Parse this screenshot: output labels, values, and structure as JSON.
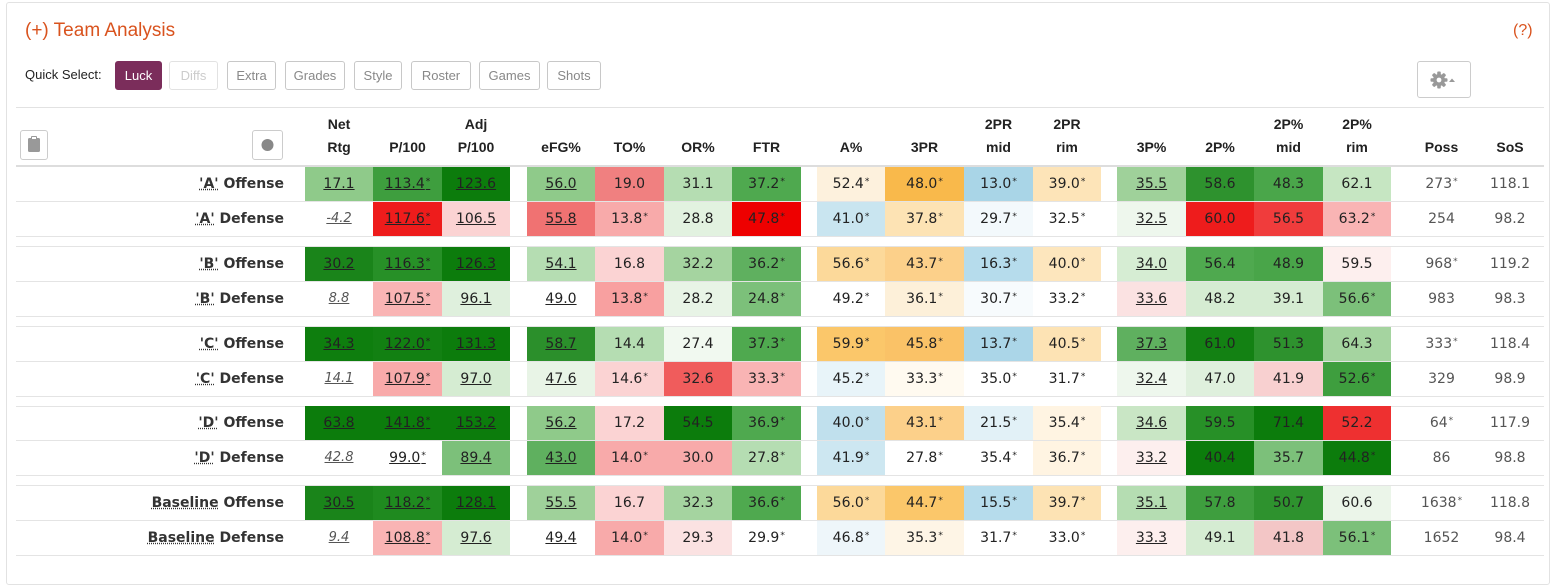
{
  "title": "(+) Team Analysis",
  "help": "(?)",
  "quick_select": {
    "label": "Quick Select:",
    "buttons": [
      {
        "label": "Luck",
        "state": "active"
      },
      {
        "label": "Diffs",
        "state": "disabled"
      },
      {
        "label": "Extra",
        "state": "normal"
      },
      {
        "label": "Grades",
        "state": "normal"
      },
      {
        "label": "Style",
        "state": "normal"
      },
      {
        "label": "Roster",
        "state": "normal"
      },
      {
        "label": "Games",
        "state": "normal"
      },
      {
        "label": "Shots",
        "state": "normal"
      }
    ]
  },
  "columns": [
    {
      "l1": "Net",
      "l2": "Rtg"
    },
    {
      "l1": "",
      "l2": "P/100"
    },
    {
      "l1": "Adj",
      "l2": "P/100"
    },
    {
      "l1": "",
      "l2": "eFG%"
    },
    {
      "l1": "",
      "l2": "TO%"
    },
    {
      "l1": "",
      "l2": "OR%"
    },
    {
      "l1": "",
      "l2": "FTR"
    },
    {
      "l1": "",
      "l2": "A%"
    },
    {
      "l1": "",
      "l2": "3PR"
    },
    {
      "l1": "2PR",
      "l2": "mid"
    },
    {
      "l1": "2PR",
      "l2": "rim"
    },
    {
      "l1": "",
      "l2": "3P%"
    },
    {
      "l1": "",
      "l2": "2P%"
    },
    {
      "l1": "2P%",
      "l2": "mid"
    },
    {
      "l1": "2P%",
      "l2": "rim"
    },
    {
      "l1": "",
      "l2": "Poss"
    },
    {
      "l1": "",
      "l2": "SoS"
    }
  ],
  "rows": [
    {
      "team": "'A'",
      "side": "Offense",
      "cells": [
        [
          "17.1",
          "",
          "#8fca8a",
          "u"
        ],
        [
          "113.4",
          "*",
          "#3e9e3e",
          "u"
        ],
        [
          "123.6",
          "",
          "#0c7c0c",
          "u"
        ],
        [
          "56.0",
          "",
          "#8fca8a",
          "u"
        ],
        [
          "19.0",
          "",
          "#f08080",
          ""
        ],
        [
          "31.1",
          "",
          "#b5ddb2",
          ""
        ],
        [
          "37.2",
          "*",
          "#4fa94f",
          ""
        ],
        [
          "52.4",
          "*",
          "#fdf1dd",
          ""
        ],
        [
          "48.0",
          "*",
          "#f9b94b",
          ""
        ],
        [
          "13.0",
          "*",
          "#a9d5e7",
          ""
        ],
        [
          "39.0",
          "*",
          "#fde4b8",
          ""
        ],
        [
          "35.5",
          "",
          "#9fd19a",
          "u"
        ],
        [
          "58.6",
          "",
          "#2e922e",
          ""
        ],
        [
          "48.3",
          "",
          "#4aa64a",
          ""
        ],
        [
          "62.1",
          "",
          "#c6e6c2",
          ""
        ],
        [
          "273",
          "*",
          "",
          "plain"
        ],
        [
          "118.1",
          "",
          "",
          "plain"
        ]
      ]
    },
    {
      "team": "'A'",
      "side": "Defense",
      "cells": [
        [
          "-4.2",
          "",
          "",
          "i"
        ],
        [
          "117.6",
          "*",
          "#ee1c1c",
          "u"
        ],
        [
          "106.5",
          "",
          "#fbd3d3",
          "u"
        ],
        [
          "55.8",
          "",
          "#f07272",
          "u"
        ],
        [
          "13.8",
          "*",
          "#f8aaaa",
          ""
        ],
        [
          "28.8",
          "",
          "#e2f2e0",
          ""
        ],
        [
          "47.8",
          "*",
          "#ee0000",
          ""
        ],
        [
          "41.0",
          "*",
          "#c9e5f0",
          ""
        ],
        [
          "37.8",
          "*",
          "#fde3b4",
          ""
        ],
        [
          "29.7",
          "*",
          "#f3f9fc",
          ""
        ],
        [
          "32.5",
          "*",
          "#ffffff",
          ""
        ],
        [
          "32.5",
          "",
          "#eef7ed",
          "u"
        ],
        [
          "60.0",
          "",
          "#ee1c1c",
          ""
        ],
        [
          "56.5",
          "",
          "#f03c3c",
          ""
        ],
        [
          "63.2",
          "*",
          "#f9b4b4",
          ""
        ],
        [
          "254",
          "",
          "",
          "plain"
        ],
        [
          "98.2",
          "",
          "",
          "plain"
        ]
      ]
    },
    {
      "team": "'B'",
      "side": "Offense",
      "cells": [
        [
          "30.2",
          "",
          "#1a841a",
          "u"
        ],
        [
          "116.3",
          "*",
          "#279027",
          "u"
        ],
        [
          "126.3",
          "",
          "#0c7c0c",
          "u"
        ],
        [
          "54.1",
          "",
          "#b5ddb2",
          "u"
        ],
        [
          "16.8",
          "",
          "#fbd3d3",
          ""
        ],
        [
          "32.2",
          "",
          "#a5d4a0",
          ""
        ],
        [
          "36.2",
          "*",
          "#5fb05f",
          ""
        ],
        [
          "56.6",
          "*",
          "#fcd99a",
          ""
        ],
        [
          "43.7",
          "*",
          "#fcd08a",
          ""
        ],
        [
          "16.3",
          "*",
          "#b6dcec",
          ""
        ],
        [
          "40.0",
          "*",
          "#fde6bd",
          ""
        ],
        [
          "34.0",
          "",
          "#d6edd3",
          "u"
        ],
        [
          "56.4",
          "",
          "#4fa94f",
          ""
        ],
        [
          "48.9",
          "",
          "#49a549",
          ""
        ],
        [
          "59.5",
          "",
          "#fdefee",
          ""
        ],
        [
          "968",
          "*",
          "",
          "plain"
        ],
        [
          "119.2",
          "",
          "",
          "plain"
        ]
      ]
    },
    {
      "team": "'B'",
      "side": "Defense",
      "cells": [
        [
          "8.8",
          "",
          "",
          "i"
        ],
        [
          "107.5",
          "*",
          "#f9b4b4",
          "u"
        ],
        [
          "96.1",
          "",
          "#dff0dd",
          "u"
        ],
        [
          "49.0",
          "",
          "",
          "u"
        ],
        [
          "13.8",
          "*",
          "#f8a0a0",
          ""
        ],
        [
          "28.2",
          "",
          "#e8f4e6",
          ""
        ],
        [
          "24.8",
          "*",
          "#7cc07a",
          ""
        ],
        [
          "49.2",
          "*",
          "#ffffff",
          ""
        ],
        [
          "36.1",
          "*",
          "#fdf0d9",
          ""
        ],
        [
          "30.7",
          "*",
          "#f7fbfd",
          ""
        ],
        [
          "33.2",
          "*",
          "#ffffff",
          ""
        ],
        [
          "33.6",
          "",
          "#fbe2e2",
          "u"
        ],
        [
          "48.2",
          "",
          "#d5ecd2",
          ""
        ],
        [
          "39.1",
          "",
          "#d5ecd2",
          ""
        ],
        [
          "56.6",
          "*",
          "#7cc07a",
          ""
        ],
        [
          "983",
          "",
          "",
          "plain"
        ],
        [
          "98.3",
          "",
          "",
          "plain"
        ]
      ]
    },
    {
      "team": "'C'",
      "side": "Offense",
      "cells": [
        [
          "34.3",
          "",
          "#0e7e0e",
          "u"
        ],
        [
          "122.0",
          "*",
          "#128012",
          "u"
        ],
        [
          "131.3",
          "",
          "#0c7c0c",
          "u"
        ],
        [
          "58.7",
          "",
          "#2b8f2b",
          "u"
        ],
        [
          "14.4",
          "",
          "#b5ddb2",
          ""
        ],
        [
          "27.4",
          "",
          "#f1f9f0",
          ""
        ],
        [
          "37.3",
          "*",
          "#4fa94f",
          ""
        ],
        [
          "59.9",
          "*",
          "#fbc76a",
          ""
        ],
        [
          "45.8",
          "*",
          "#fac267",
          ""
        ],
        [
          "13.7",
          "*",
          "#abd6e8",
          ""
        ],
        [
          "40.5",
          "*",
          "#fde3b4",
          ""
        ],
        [
          "37.3",
          "",
          "#5fb05f",
          "u"
        ],
        [
          "61.0",
          "",
          "#138113",
          ""
        ],
        [
          "51.3",
          "",
          "#2e922e",
          ""
        ],
        [
          "64.3",
          "",
          "#a5d4a0",
          ""
        ],
        [
          "333",
          "*",
          "",
          "plain"
        ],
        [
          "118.4",
          "",
          "",
          "plain"
        ]
      ]
    },
    {
      "team": "'C'",
      "side": "Defense",
      "cells": [
        [
          "14.1",
          "",
          "",
          "i"
        ],
        [
          "107.9",
          "*",
          "#f8aaaa",
          "u"
        ],
        [
          "97.0",
          "",
          "#d5ecd2",
          "u"
        ],
        [
          "47.6",
          "",
          "#e8f4e6",
          "u"
        ],
        [
          "14.6",
          "*",
          "#fbd3d3",
          ""
        ],
        [
          "32.6",
          "",
          "#f05c5c",
          ""
        ],
        [
          "33.3",
          "*",
          "#f9b4b4",
          ""
        ],
        [
          "45.2",
          "*",
          "#e8f4f9",
          ""
        ],
        [
          "33.3",
          "*",
          "#fffaf0",
          ""
        ],
        [
          "35.0",
          "*",
          "#ffffff",
          ""
        ],
        [
          "31.7",
          "*",
          "#ffffff",
          ""
        ],
        [
          "32.4",
          "",
          "#eef7ed",
          "u"
        ],
        [
          "47.0",
          "",
          "#dff0dd",
          ""
        ],
        [
          "41.9",
          "",
          "#f8d0d0",
          ""
        ],
        [
          "52.6",
          "*",
          "#3e9e3e",
          ""
        ],
        [
          "329",
          "",
          "",
          "plain"
        ],
        [
          "98.9",
          "",
          "",
          "plain"
        ]
      ]
    },
    {
      "team": "'D'",
      "side": "Offense",
      "cells": [
        [
          "63.8",
          "",
          "#0c7c0c",
          "u"
        ],
        [
          "141.8",
          "*",
          "#0c7c0c",
          "u"
        ],
        [
          "153.2",
          "",
          "#0c7c0c",
          "u"
        ],
        [
          "56.2",
          "",
          "#8fca8a",
          "u"
        ],
        [
          "17.2",
          "",
          "#fbd3d3",
          ""
        ],
        [
          "54.5",
          "",
          "#0c7c0c",
          ""
        ],
        [
          "36.9",
          "*",
          "#4fa94f",
          ""
        ],
        [
          "40.0",
          "*",
          "#c0e0ed",
          ""
        ],
        [
          "43.1",
          "*",
          "#fcd08a",
          ""
        ],
        [
          "21.5",
          "*",
          "#e2f1f7",
          ""
        ],
        [
          "35.4",
          "*",
          "#fff4e2",
          ""
        ],
        [
          "34.6",
          "",
          "#c9e6c5",
          "u"
        ],
        [
          "59.5",
          "",
          "#279027",
          ""
        ],
        [
          "71.4",
          "",
          "#0c7c0c",
          ""
        ],
        [
          "52.2",
          "",
          "#ee3030",
          ""
        ],
        [
          "64",
          "*",
          "",
          "plain"
        ],
        [
          "117.9",
          "",
          "",
          "plain"
        ]
      ]
    },
    {
      "team": "'D'",
      "side": "Defense",
      "cells": [
        [
          "42.8",
          "",
          "",
          "i"
        ],
        [
          "99.0",
          "*",
          "",
          "u"
        ],
        [
          "89.4",
          "",
          "#7cc07a",
          "u"
        ],
        [
          "43.0",
          "",
          "#5fb05f",
          "u"
        ],
        [
          "14.0",
          "*",
          "#f8aaaa",
          ""
        ],
        [
          "30.0",
          "",
          "#f8aaaa",
          ""
        ],
        [
          "27.8",
          "*",
          "#b5ddb2",
          ""
        ],
        [
          "41.9",
          "*",
          "#cde7f1",
          ""
        ],
        [
          "27.8",
          "*",
          "#ffffff",
          ""
        ],
        [
          "35.4",
          "*",
          "#ffffff",
          ""
        ],
        [
          "36.7",
          "*",
          "#fff4e2",
          ""
        ],
        [
          "33.2",
          "",
          "#fdefee",
          "u"
        ],
        [
          "40.4",
          "",
          "#0c7c0c",
          ""
        ],
        [
          "35.7",
          "",
          "#7cc07a",
          ""
        ],
        [
          "44.8",
          "*",
          "#0c7c0c",
          ""
        ],
        [
          "86",
          "",
          "",
          "plain"
        ],
        [
          "98.8",
          "",
          "",
          "plain"
        ]
      ]
    },
    {
      "team": "Baseline",
      "side": "Offense",
      "cells": [
        [
          "30.5",
          "",
          "#1a841a",
          "u"
        ],
        [
          "118.2",
          "*",
          "#1f8a1f",
          "u"
        ],
        [
          "128.1",
          "",
          "#0c7c0c",
          "u"
        ],
        [
          "55.5",
          "",
          "#9fd19a",
          "u"
        ],
        [
          "16.7",
          "",
          "#fbd3d3",
          ""
        ],
        [
          "32.3",
          "",
          "#a5d4a0",
          ""
        ],
        [
          "36.6",
          "*",
          "#4fa94f",
          ""
        ],
        [
          "56.0",
          "*",
          "#fcd99a",
          ""
        ],
        [
          "44.7",
          "*",
          "#fbc76a",
          ""
        ],
        [
          "15.5",
          "*",
          "#b6dcec",
          ""
        ],
        [
          "39.7",
          "*",
          "#fde3b4",
          ""
        ],
        [
          "35.1",
          "",
          "#b5ddb2",
          "u"
        ],
        [
          "57.8",
          "",
          "#3e9e3e",
          ""
        ],
        [
          "50.7",
          "",
          "#2e922e",
          ""
        ],
        [
          "60.6",
          "",
          "#ebf5e9",
          ""
        ],
        [
          "1638",
          "*",
          "",
          "plain"
        ],
        [
          "118.8",
          "",
          "",
          "plain"
        ]
      ]
    },
    {
      "team": "Baseline",
      "side": "Defense",
      "cells": [
        [
          "9.4",
          "",
          "",
          "i"
        ],
        [
          "108.8",
          "*",
          "#f9b4b4",
          "u"
        ],
        [
          "97.6",
          "",
          "#d5ecd2",
          "u"
        ],
        [
          "49.4",
          "",
          "",
          "u"
        ],
        [
          "14.0",
          "*",
          "#f8aaaa",
          ""
        ],
        [
          "29.3",
          "",
          "#fbe2e2",
          ""
        ],
        [
          "29.9",
          "*",
          "#ffffff",
          ""
        ],
        [
          "46.8",
          "*",
          "#eef6fa",
          ""
        ],
        [
          "35.3",
          "*",
          "#fef5e6",
          ""
        ],
        [
          "31.7",
          "*",
          "#ffffff",
          ""
        ],
        [
          "33.0",
          "*",
          "#ffffff",
          ""
        ],
        [
          "33.3",
          "",
          "#fdefee",
          "u"
        ],
        [
          "49.1",
          "",
          "#d5ecd2",
          ""
        ],
        [
          "41.8",
          "",
          "#f3c6c6",
          ""
        ],
        [
          "56.1",
          "*",
          "#7cc07a",
          ""
        ],
        [
          "1652",
          "",
          "",
          "plain"
        ],
        [
          "98.4",
          "",
          "",
          "plain"
        ]
      ]
    }
  ]
}
